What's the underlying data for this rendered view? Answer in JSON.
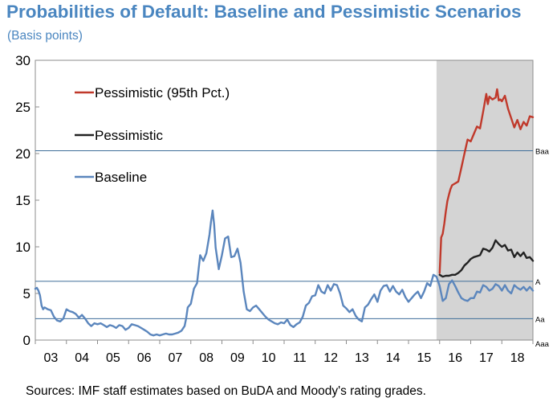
{
  "chart_data": {
    "type": "line",
    "title": "Probabilities of Default: Baseline and Pessimistic Scenarios",
    "subtitle": "(Basis points)",
    "source": "Sources: IMF staff estimates based on BuDA and Moody's rating grades.",
    "xlabel": "",
    "ylabel": "",
    "x_tick_labels": [
      "03",
      "04",
      "05",
      "06",
      "07",
      "08",
      "09",
      "10",
      "11",
      "12",
      "13",
      "14",
      "15",
      "16",
      "17",
      "18"
    ],
    "x_range": [
      2003.0,
      2019.0
    ],
    "ylim": [
      0,
      30
    ],
    "yticks": [
      0,
      5,
      10,
      15,
      20,
      25,
      30
    ],
    "grid": false,
    "legend": "top-left",
    "forecast_shading": {
      "from": 2015.9,
      "to": 2019.0,
      "color": "#d4d4d4"
    },
    "reference_lines": [
      {
        "label": "Baa",
        "value": 20.3
      },
      {
        "label": "A",
        "value": 6.3
      },
      {
        "label": "Aa",
        "value": 2.3
      },
      {
        "label": "Aaa",
        "value": 0.0
      }
    ],
    "series": [
      {
        "name": "Pessimistic (95th Pct.)",
        "color": "#c0392b",
        "points": [
          [
            2016.0,
            7.2
          ],
          [
            2016.05,
            11.0
          ],
          [
            2016.1,
            11.4
          ],
          [
            2016.15,
            12.5
          ],
          [
            2016.2,
            13.8
          ],
          [
            2016.25,
            14.9
          ],
          [
            2016.3,
            15.6
          ],
          [
            2016.35,
            16.2
          ],
          [
            2016.4,
            16.6
          ],
          [
            2016.5,
            16.8
          ],
          [
            2016.6,
            17.0
          ],
          [
            2016.7,
            18.5
          ],
          [
            2016.8,
            20.0
          ],
          [
            2016.9,
            21.5
          ],
          [
            2017.0,
            21.3
          ],
          [
            2017.1,
            22.1
          ],
          [
            2017.2,
            22.9
          ],
          [
            2017.3,
            22.7
          ],
          [
            2017.4,
            24.5
          ],
          [
            2017.5,
            26.4
          ],
          [
            2017.55,
            25.3
          ],
          [
            2017.6,
            26.1
          ],
          [
            2017.7,
            25.8
          ],
          [
            2017.8,
            26.0
          ],
          [
            2017.85,
            26.9
          ],
          [
            2017.9,
            25.7
          ],
          [
            2017.95,
            25.8
          ],
          [
            2018.0,
            25.6
          ],
          [
            2018.1,
            26.2
          ],
          [
            2018.2,
            24.8
          ],
          [
            2018.3,
            23.8
          ],
          [
            2018.4,
            22.8
          ],
          [
            2018.5,
            23.6
          ],
          [
            2018.6,
            22.6
          ],
          [
            2018.7,
            23.4
          ],
          [
            2018.8,
            23.0
          ],
          [
            2018.9,
            24.0
          ],
          [
            2019.0,
            23.9
          ]
        ]
      },
      {
        "name": "Pessimistic",
        "color": "#222222",
        "points": [
          [
            2016.0,
            7.0
          ],
          [
            2016.1,
            6.8
          ],
          [
            2016.2,
            6.9
          ],
          [
            2016.3,
            6.9
          ],
          [
            2016.4,
            7.0
          ],
          [
            2016.5,
            7.0
          ],
          [
            2016.6,
            7.2
          ],
          [
            2016.7,
            7.5
          ],
          [
            2016.8,
            8.0
          ],
          [
            2016.9,
            8.3
          ],
          [
            2017.0,
            8.7
          ],
          [
            2017.1,
            8.9
          ],
          [
            2017.2,
            9.0
          ],
          [
            2017.3,
            9.1
          ],
          [
            2017.4,
            9.8
          ],
          [
            2017.5,
            9.7
          ],
          [
            2017.6,
            9.5
          ],
          [
            2017.7,
            9.9
          ],
          [
            2017.8,
            10.7
          ],
          [
            2017.9,
            10.3
          ],
          [
            2018.0,
            10.0
          ],
          [
            2018.1,
            10.2
          ],
          [
            2018.2,
            9.6
          ],
          [
            2018.3,
            9.7
          ],
          [
            2018.4,
            8.9
          ],
          [
            2018.5,
            9.4
          ],
          [
            2018.6,
            9.0
          ],
          [
            2018.7,
            9.4
          ],
          [
            2018.8,
            8.8
          ],
          [
            2018.9,
            8.9
          ],
          [
            2019.0,
            8.5
          ]
        ]
      },
      {
        "name": "Baseline",
        "color": "#5b86bd",
        "points": [
          [
            2003.0,
            5.5
          ],
          [
            2003.05,
            5.6
          ],
          [
            2003.1,
            5.3
          ],
          [
            2003.15,
            4.8
          ],
          [
            2003.2,
            3.7
          ],
          [
            2003.25,
            3.3
          ],
          [
            2003.3,
            3.5
          ],
          [
            2003.4,
            3.3
          ],
          [
            2003.5,
            3.2
          ],
          [
            2003.6,
            2.5
          ],
          [
            2003.7,
            2.1
          ],
          [
            2003.8,
            2.0
          ],
          [
            2003.9,
            2.3
          ],
          [
            2004.0,
            3.3
          ],
          [
            2004.1,
            3.1
          ],
          [
            2004.2,
            3.0
          ],
          [
            2004.3,
            2.8
          ],
          [
            2004.4,
            2.4
          ],
          [
            2004.5,
            2.7
          ],
          [
            2004.6,
            2.3
          ],
          [
            2004.7,
            1.8
          ],
          [
            2004.8,
            1.5
          ],
          [
            2004.9,
            1.8
          ],
          [
            2005.0,
            1.7
          ],
          [
            2005.1,
            1.8
          ],
          [
            2005.2,
            1.6
          ],
          [
            2005.3,
            1.4
          ],
          [
            2005.4,
            1.6
          ],
          [
            2005.5,
            1.5
          ],
          [
            2005.6,
            1.3
          ],
          [
            2005.7,
            1.6
          ],
          [
            2005.8,
            1.5
          ],
          [
            2005.9,
            1.1
          ],
          [
            2006.0,
            1.3
          ],
          [
            2006.1,
            1.7
          ],
          [
            2006.2,
            1.6
          ],
          [
            2006.3,
            1.5
          ],
          [
            2006.4,
            1.3
          ],
          [
            2006.5,
            1.1
          ],
          [
            2006.6,
            0.9
          ],
          [
            2006.7,
            0.6
          ],
          [
            2006.8,
            0.5
          ],
          [
            2006.9,
            0.6
          ],
          [
            2007.0,
            0.5
          ],
          [
            2007.1,
            0.6
          ],
          [
            2007.2,
            0.7
          ],
          [
            2007.3,
            0.6
          ],
          [
            2007.4,
            0.6
          ],
          [
            2007.5,
            0.7
          ],
          [
            2007.6,
            0.8
          ],
          [
            2007.7,
            1.0
          ],
          [
            2007.8,
            1.5
          ],
          [
            2007.85,
            2.3
          ],
          [
            2007.9,
            3.5
          ],
          [
            2008.0,
            3.9
          ],
          [
            2008.1,
            5.5
          ],
          [
            2008.2,
            6.1
          ],
          [
            2008.3,
            9.1
          ],
          [
            2008.4,
            8.5
          ],
          [
            2008.5,
            9.3
          ],
          [
            2008.6,
            11.3
          ],
          [
            2008.65,
            12.7
          ],
          [
            2008.7,
            13.9
          ],
          [
            2008.75,
            12.4
          ],
          [
            2008.8,
            9.9
          ],
          [
            2008.9,
            7.6
          ],
          [
            2009.0,
            9.1
          ],
          [
            2009.1,
            10.9
          ],
          [
            2009.2,
            11.1
          ],
          [
            2009.3,
            8.9
          ],
          [
            2009.4,
            9.0
          ],
          [
            2009.5,
            9.8
          ],
          [
            2009.6,
            8.3
          ],
          [
            2009.7,
            5.2
          ],
          [
            2009.8,
            3.3
          ],
          [
            2009.9,
            3.1
          ],
          [
            2010.0,
            3.5
          ],
          [
            2010.1,
            3.7
          ],
          [
            2010.2,
            3.3
          ],
          [
            2010.3,
            2.9
          ],
          [
            2010.4,
            2.5
          ],
          [
            2010.5,
            2.2
          ],
          [
            2010.6,
            2.0
          ],
          [
            2010.7,
            1.8
          ],
          [
            2010.8,
            1.7
          ],
          [
            2010.9,
            1.9
          ],
          [
            2011.0,
            1.8
          ],
          [
            2011.1,
            2.2
          ],
          [
            2011.2,
            1.6
          ],
          [
            2011.3,
            1.4
          ],
          [
            2011.4,
            1.7
          ],
          [
            2011.5,
            1.9
          ],
          [
            2011.6,
            2.5
          ],
          [
            2011.7,
            3.7
          ],
          [
            2011.8,
            4.0
          ],
          [
            2011.9,
            4.7
          ],
          [
            2012.0,
            4.8
          ],
          [
            2012.1,
            5.9
          ],
          [
            2012.2,
            5.2
          ],
          [
            2012.3,
            5.0
          ],
          [
            2012.4,
            5.9
          ],
          [
            2012.5,
            5.3
          ],
          [
            2012.6,
            6.0
          ],
          [
            2012.7,
            5.9
          ],
          [
            2012.8,
            5.0
          ],
          [
            2012.9,
            3.7
          ],
          [
            2013.0,
            3.4
          ],
          [
            2013.1,
            3.0
          ],
          [
            2013.2,
            3.3
          ],
          [
            2013.3,
            2.6
          ],
          [
            2013.4,
            2.2
          ],
          [
            2013.5,
            2.0
          ],
          [
            2013.6,
            3.5
          ],
          [
            2013.7,
            3.8
          ],
          [
            2013.8,
            4.4
          ],
          [
            2013.9,
            4.9
          ],
          [
            2014.0,
            4.1
          ],
          [
            2014.1,
            5.3
          ],
          [
            2014.2,
            5.8
          ],
          [
            2014.3,
            5.9
          ],
          [
            2014.4,
            5.2
          ],
          [
            2014.5,
            5.8
          ],
          [
            2014.6,
            5.2
          ],
          [
            2014.7,
            4.9
          ],
          [
            2014.8,
            5.4
          ],
          [
            2014.9,
            4.6
          ],
          [
            2015.0,
            4.1
          ],
          [
            2015.1,
            4.5
          ],
          [
            2015.2,
            4.9
          ],
          [
            2015.3,
            5.2
          ],
          [
            2015.4,
            4.5
          ],
          [
            2015.5,
            5.2
          ],
          [
            2015.6,
            6.1
          ],
          [
            2015.7,
            5.8
          ],
          [
            2015.8,
            7.0
          ],
          [
            2015.9,
            6.8
          ],
          [
            2016.0,
            5.8
          ],
          [
            2016.1,
            4.2
          ],
          [
            2016.2,
            4.5
          ],
          [
            2016.3,
            6.0
          ],
          [
            2016.4,
            6.4
          ],
          [
            2016.5,
            5.8
          ],
          [
            2016.6,
            5.1
          ],
          [
            2016.7,
            4.5
          ],
          [
            2016.8,
            4.3
          ],
          [
            2016.9,
            4.2
          ],
          [
            2017.0,
            4.5
          ],
          [
            2017.1,
            4.5
          ],
          [
            2017.2,
            5.2
          ],
          [
            2017.3,
            5.1
          ],
          [
            2017.4,
            5.9
          ],
          [
            2017.5,
            5.7
          ],
          [
            2017.6,
            5.3
          ],
          [
            2017.7,
            5.5
          ],
          [
            2017.8,
            6.0
          ],
          [
            2017.9,
            5.8
          ],
          [
            2018.0,
            5.3
          ],
          [
            2018.1,
            5.9
          ],
          [
            2018.2,
            5.3
          ],
          [
            2018.3,
            5.0
          ],
          [
            2018.4,
            5.9
          ],
          [
            2018.5,
            5.6
          ],
          [
            2018.6,
            5.4
          ],
          [
            2018.7,
            5.7
          ],
          [
            2018.8,
            5.3
          ],
          [
            2018.9,
            5.7
          ],
          [
            2019.0,
            5.3
          ]
        ]
      }
    ]
  }
}
